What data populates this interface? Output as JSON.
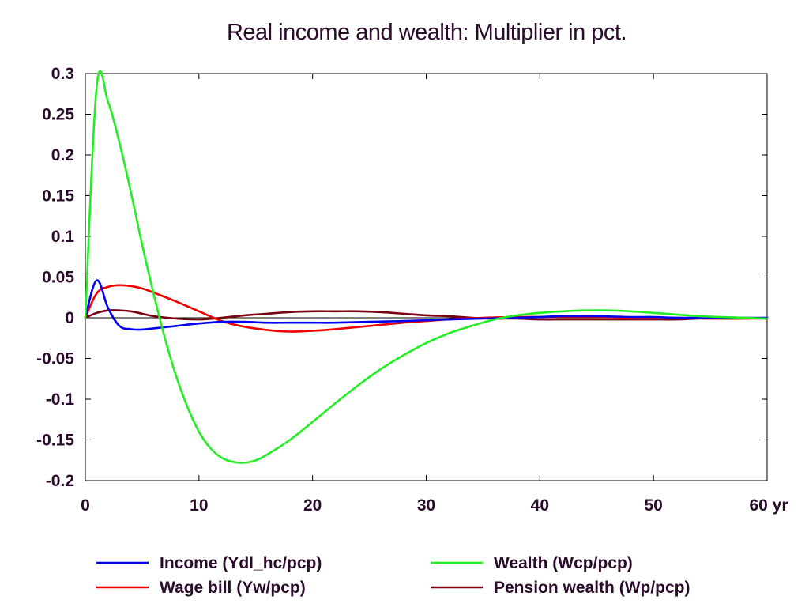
{
  "chart_data": {
    "type": "line",
    "title": "Real income and wealth: Multiplier in pct.",
    "xlim": [
      0,
      60
    ],
    "ylim": [
      -0.2,
      0.3
    ],
    "x_ticks": [
      {
        "value": 0,
        "label": "0"
      },
      {
        "value": 10,
        "label": "10"
      },
      {
        "value": 20,
        "label": "20"
      },
      {
        "value": 30,
        "label": "30"
      },
      {
        "value": 40,
        "label": "40"
      },
      {
        "value": 50,
        "label": "50"
      },
      {
        "value": 60,
        "label": "60 yr"
      }
    ],
    "y_ticks": [
      {
        "value": 0.3,
        "label": "0.3"
      },
      {
        "value": 0.25,
        "label": "0.25"
      },
      {
        "value": 0.2,
        "label": "0.2"
      },
      {
        "value": 0.15,
        "label": "0.15"
      },
      {
        "value": 0.1,
        "label": "0.1"
      },
      {
        "value": 0.05,
        "label": "0.05"
      },
      {
        "value": 0,
        "label": "0"
      },
      {
        "value": -0.05,
        "label": "-0.05"
      },
      {
        "value": -0.1,
        "label": "-0.1"
      },
      {
        "value": -0.15,
        "label": "-0.15"
      },
      {
        "value": -0.2,
        "label": "-0.2"
      }
    ],
    "grid": false,
    "zero_line": true,
    "legend_position": "bottom",
    "series": [
      {
        "name": "Income (Ydl_hc/pcp)",
        "color": "#0000ee",
        "points": [
          [
            0,
            0
          ],
          [
            1,
            0.046
          ],
          [
            2,
            0.012
          ],
          [
            3,
            -0.01
          ],
          [
            4,
            -0.014
          ],
          [
            5,
            -0.0145
          ],
          [
            6,
            -0.013
          ],
          [
            8,
            -0.01
          ],
          [
            10,
            -0.007
          ],
          [
            12,
            -0.005
          ],
          [
            14,
            -0.005
          ],
          [
            16,
            -0.006
          ],
          [
            18,
            -0.006
          ],
          [
            20,
            -0.006
          ],
          [
            22,
            -0.006
          ],
          [
            25,
            -0.005
          ],
          [
            28,
            -0.004
          ],
          [
            30,
            -0.003
          ],
          [
            32,
            -0.002
          ],
          [
            35,
            -0.001
          ],
          [
            38,
            0
          ],
          [
            40,
            0.001
          ],
          [
            42,
            0.002
          ],
          [
            45,
            0.002
          ],
          [
            48,
            0.001
          ],
          [
            50,
            0.001
          ],
          [
            52,
            0
          ],
          [
            55,
            0
          ],
          [
            58,
            0
          ],
          [
            60,
            0
          ]
        ]
      },
      {
        "name": "Wage bill (Yw/pcp)",
        "color": "#ee0000",
        "points": [
          [
            0,
            0
          ],
          [
            1,
            0.03
          ],
          [
            2,
            0.038
          ],
          [
            3,
            0.04
          ],
          [
            4,
            0.039
          ],
          [
            5,
            0.036
          ],
          [
            6,
            0.031
          ],
          [
            8,
            0.02
          ],
          [
            10,
            0.008
          ],
          [
            12,
            -0.004
          ],
          [
            14,
            -0.011
          ],
          [
            16,
            -0.015
          ],
          [
            18,
            -0.017
          ],
          [
            20,
            -0.016
          ],
          [
            22,
            -0.014
          ],
          [
            25,
            -0.01
          ],
          [
            28,
            -0.006
          ],
          [
            30,
            -0.004
          ],
          [
            32,
            -0.002
          ],
          [
            35,
            0
          ],
          [
            38,
            0.001
          ],
          [
            40,
            0.001
          ],
          [
            42,
            0.001
          ],
          [
            45,
            0.001
          ],
          [
            48,
            0
          ],
          [
            50,
            0
          ],
          [
            52,
            0
          ],
          [
            55,
            -0.001
          ],
          [
            58,
            -0.001
          ],
          [
            60,
            -0.001
          ]
        ]
      },
      {
        "name": "Wealth (Wcp/pcp)",
        "color": "#22ee22",
        "points": [
          [
            0,
            0
          ],
          [
            1,
            0.284
          ],
          [
            2,
            0.265
          ],
          [
            3,
            0.215
          ],
          [
            4,
            0.155
          ],
          [
            5,
            0.09
          ],
          [
            6,
            0.03
          ],
          [
            7,
            -0.025
          ],
          [
            8,
            -0.072
          ],
          [
            9,
            -0.11
          ],
          [
            10,
            -0.14
          ],
          [
            11,
            -0.16
          ],
          [
            12,
            -0.172
          ],
          [
            13,
            -0.177
          ],
          [
            14,
            -0.178
          ],
          [
            15,
            -0.175
          ],
          [
            16,
            -0.168
          ],
          [
            18,
            -0.15
          ],
          [
            20,
            -0.128
          ],
          [
            22,
            -0.105
          ],
          [
            24,
            -0.083
          ],
          [
            26,
            -0.063
          ],
          [
            28,
            -0.046
          ],
          [
            30,
            -0.031
          ],
          [
            32,
            -0.019
          ],
          [
            34,
            -0.01
          ],
          [
            36,
            -0.002
          ],
          [
            38,
            0.003
          ],
          [
            40,
            0.006
          ],
          [
            42,
            0.008
          ],
          [
            44,
            0.009
          ],
          [
            46,
            0.009
          ],
          [
            48,
            0.008
          ],
          [
            50,
            0.006
          ],
          [
            52,
            0.004
          ],
          [
            54,
            0.002
          ],
          [
            56,
            0.001
          ],
          [
            58,
            0
          ],
          [
            60,
            -0.001
          ]
        ]
      },
      {
        "name": "Pension wealth (Wp/pcp)",
        "color": "#770011",
        "points": [
          [
            0,
            0
          ],
          [
            1,
            0.006
          ],
          [
            2,
            0.009
          ],
          [
            3,
            0.009
          ],
          [
            4,
            0.008
          ],
          [
            5,
            0.005
          ],
          [
            6,
            0.002
          ],
          [
            8,
            -0.001
          ],
          [
            10,
            -0.002
          ],
          [
            12,
            0
          ],
          [
            14,
            0.003
          ],
          [
            16,
            0.005
          ],
          [
            18,
            0.007
          ],
          [
            20,
            0.008
          ],
          [
            22,
            0.008
          ],
          [
            24,
            0.008
          ],
          [
            26,
            0.007
          ],
          [
            28,
            0.005
          ],
          [
            30,
            0.003
          ],
          [
            32,
            0.002
          ],
          [
            34,
            0
          ],
          [
            36,
            -0.001
          ],
          [
            38,
            -0.001
          ],
          [
            40,
            -0.002
          ],
          [
            42,
            -0.002
          ],
          [
            44,
            -0.002
          ],
          [
            46,
            -0.002
          ],
          [
            48,
            -0.002
          ],
          [
            50,
            -0.002
          ],
          [
            52,
            -0.002
          ],
          [
            54,
            -0.001
          ],
          [
            56,
            -0.001
          ],
          [
            58,
            -0.001
          ],
          [
            60,
            0
          ]
        ]
      }
    ]
  }
}
